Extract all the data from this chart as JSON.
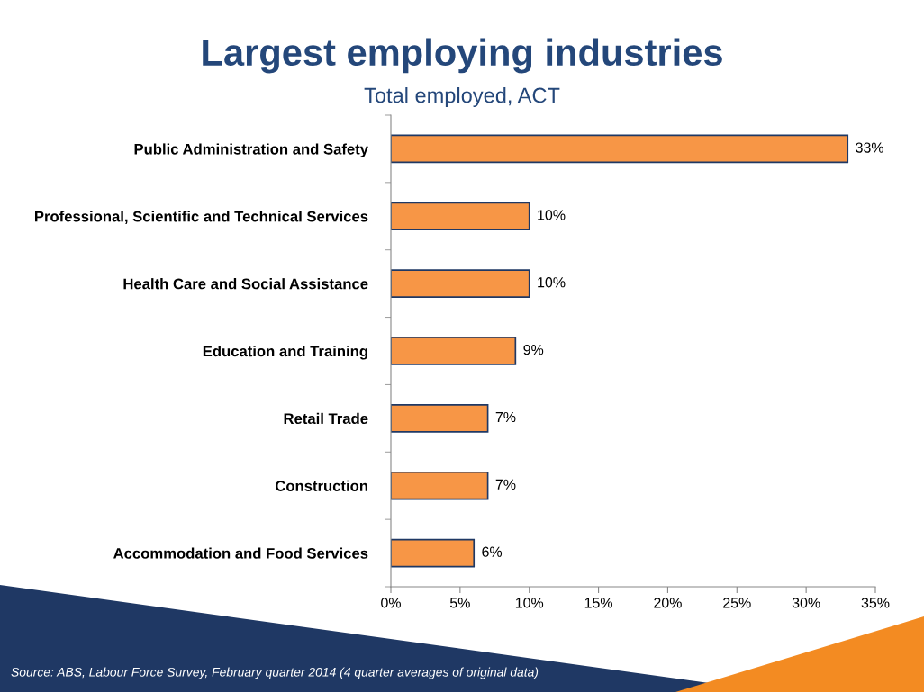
{
  "chart_data": {
    "type": "bar",
    "orientation": "horizontal",
    "title": "Largest employing industries",
    "subtitle": "Total employed, ACT",
    "categories": [
      "Public Administration and Safety",
      "Professional, Scientific and Technical Services",
      "Health Care and Social Assistance",
      "Education and Training",
      "Retail Trade",
      "Construction",
      "Accommodation and Food Services"
    ],
    "values": [
      33,
      10,
      10,
      9,
      7,
      7,
      6
    ],
    "value_labels": [
      "33%",
      "10%",
      "10%",
      "9%",
      "7%",
      "7%",
      "6%"
    ],
    "color": "#f79646",
    "xlim": [
      0,
      35
    ],
    "xticks": [
      {
        "value": 0,
        "label": "0%"
      },
      {
        "value": 5,
        "label": "5%"
      },
      {
        "value": 10,
        "label": "10%"
      },
      {
        "value": 15,
        "label": "15%"
      },
      {
        "value": 20,
        "label": "20%"
      },
      {
        "value": 25,
        "label": "25%"
      },
      {
        "value": 30,
        "label": "30%"
      },
      {
        "value": 35,
        "label": "35%"
      }
    ],
    "grid": false,
    "annotations": [
      "Source: ABS, Labour Force Survey, February quarter 2014 (4 quarter averages of original data)"
    ]
  }
}
